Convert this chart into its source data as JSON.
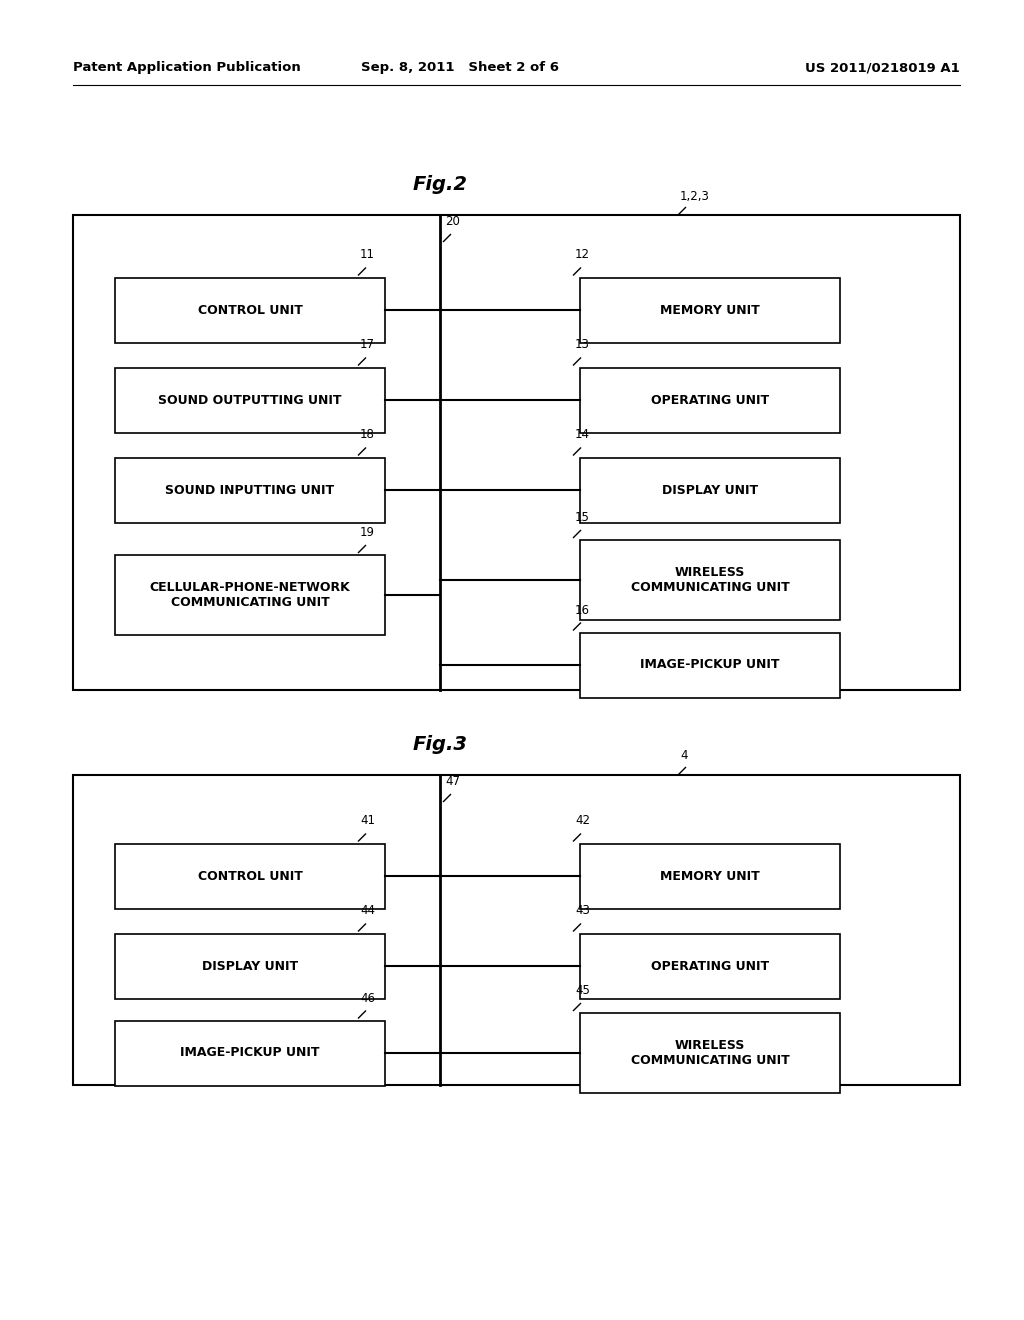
{
  "background_color": "#ffffff",
  "header_left": "Patent Application Publication",
  "header_mid": "Sep. 8, 2011   Sheet 2 of 6",
  "header_right": "US 2011/0218019 A1",
  "fig2_title": "Fig.2",
  "fig2_outer_label": "1,2,3",
  "fig2_bus_label": "20",
  "fig2_left_boxes": [
    {
      "label": "CONTROL UNIT",
      "num": "11"
    },
    {
      "label": "SOUND OUTPUTTING UNIT",
      "num": "17"
    },
    {
      "label": "SOUND INPUTTING UNIT",
      "num": "18"
    },
    {
      "label": "CELLULAR-PHONE-NETWORK\nCOMMUNICATING UNIT",
      "num": "19"
    }
  ],
  "fig2_right_boxes": [
    {
      "label": "MEMORY UNIT",
      "num": "12"
    },
    {
      "label": "OPERATING UNIT",
      "num": "13"
    },
    {
      "label": "DISPLAY UNIT",
      "num": "14"
    },
    {
      "label": "WIRELESS\nCOMMUNICATING UNIT",
      "num": "15"
    },
    {
      "label": "IMAGE-PICKUP UNIT",
      "num": "16"
    }
  ],
  "fig3_title": "Fig.3",
  "fig3_outer_label": "4",
  "fig3_bus_label": "47",
  "fig3_left_boxes": [
    {
      "label": "CONTROL UNIT",
      "num": "41"
    },
    {
      "label": "DISPLAY UNIT",
      "num": "44"
    },
    {
      "label": "IMAGE-PICKUP UNIT",
      "num": "46"
    }
  ],
  "fig3_right_boxes": [
    {
      "label": "MEMORY UNIT",
      "num": "42"
    },
    {
      "label": "OPERATING UNIT",
      "num": "43"
    },
    {
      "label": "WIRELESS\nCOMMUNICATING UNIT",
      "num": "45"
    }
  ]
}
